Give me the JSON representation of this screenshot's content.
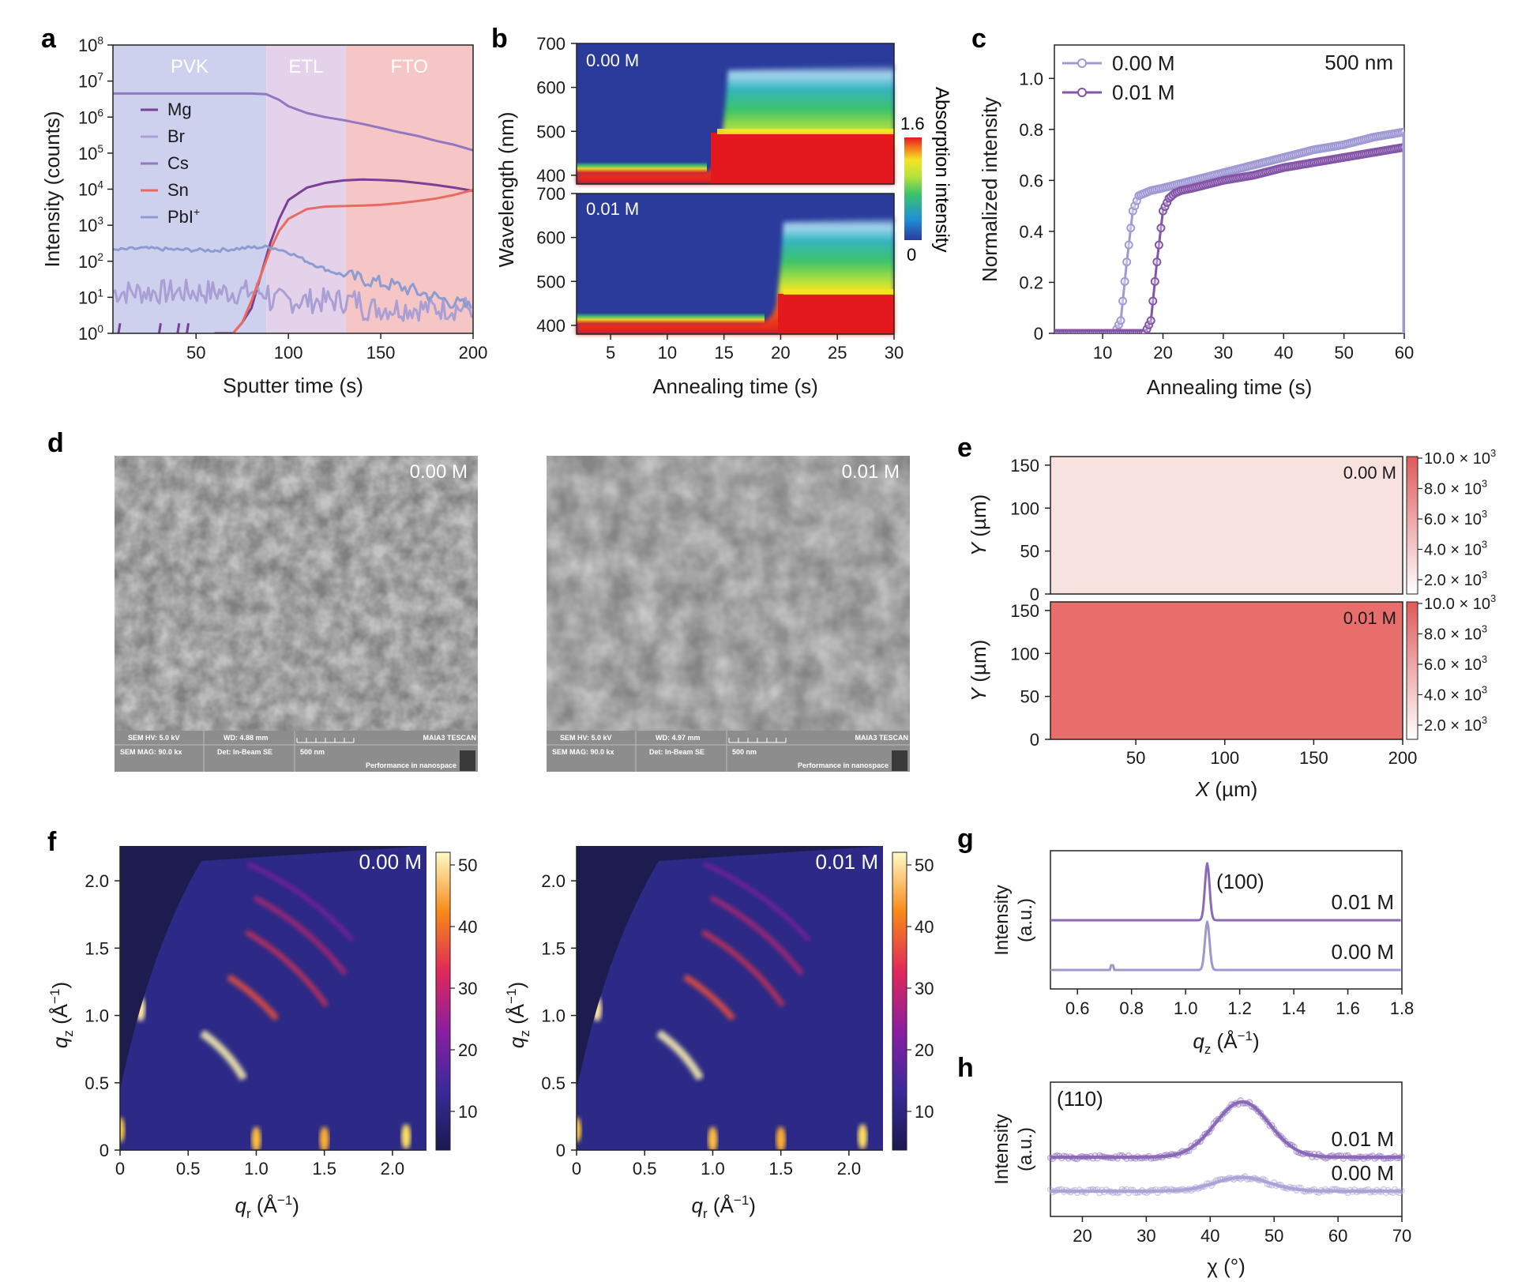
{
  "panels": {
    "a": "a",
    "b": "b",
    "c": "c",
    "d": "d",
    "e": "e",
    "f": "f",
    "g": "g",
    "h": "h"
  },
  "colors": {
    "pvk_bg": "#cdd1ee",
    "etl_bg": "#e3d2ea",
    "fto_bg": "#f6c6c6",
    "dark_purple": "#7b3f96",
    "mid_purple": "#9278c0",
    "light_purple": "#a99fd4",
    "red": "#ea6a5f",
    "c_light": "#a09ad4",
    "c_dark": "#8454a8",
    "g_purple": "#8a6ab8",
    "g_light": "#9e98cc"
  },
  "chart_data": [
    {
      "panel": "a",
      "type": "line",
      "xlabel": "Sputter time (s)",
      "ylabel": "Intensity (counts)",
      "xlim": [
        5,
        200
      ],
      "yscale": "log",
      "ylim": [
        1,
        100000000
      ],
      "xticks": [
        "50",
        "100",
        "150",
        "200"
      ],
      "yticks": [
        {
          "base": "10",
          "exp": "8"
        },
        {
          "base": "10",
          "exp": "7"
        },
        {
          "base": "10",
          "exp": "6"
        },
        {
          "base": "10",
          "exp": "5"
        },
        {
          "base": "10",
          "exp": "4"
        },
        {
          "base": "10",
          "exp": "3"
        },
        {
          "base": "10",
          "exp": "2"
        },
        {
          "base": "10",
          "exp": "1"
        },
        {
          "base": "10",
          "exp": "0"
        }
      ],
      "regions": [
        {
          "label": "PVK",
          "x": [
            5,
            88
          ]
        },
        {
          "label": "ETL",
          "x": [
            88,
            131
          ]
        },
        {
          "label": "FTO",
          "x": [
            131,
            200
          ]
        }
      ],
      "legend_position": "left",
      "series": [
        {
          "name": "Mg",
          "color": "#7b3f96",
          "x": [
            60,
            70,
            75,
            80,
            85,
            90,
            95,
            100,
            110,
            120,
            130,
            140,
            150,
            160,
            170,
            180,
            190,
            200
          ],
          "y": [
            1,
            1,
            2,
            5,
            40,
            300,
            1500,
            5000,
            11000,
            15000,
            17500,
            18500,
            18000,
            17000,
            15000,
            13000,
            11000,
            9000
          ]
        },
        {
          "name": "Br",
          "color": "#a99fd4",
          "x": [
            5,
            20,
            40,
            60,
            80,
            88,
            100,
            110,
            120,
            130,
            140,
            150,
            160,
            170,
            180,
            190,
            200
          ],
          "y": [
            15,
            12,
            14,
            11,
            13,
            10,
            8,
            9,
            7,
            8,
            6,
            7,
            5,
            6,
            4,
            5,
            4
          ]
        },
        {
          "name": "Cs",
          "color": "#9278c0",
          "x": [
            5,
            20,
            40,
            60,
            80,
            88,
            95,
            100,
            110,
            120,
            130,
            140,
            150,
            160,
            170,
            180,
            190,
            200
          ],
          "y": [
            4500000,
            4500000,
            4500000,
            4500000,
            4500000,
            4300000,
            3000000,
            2000000,
            1300000,
            1000000,
            820000,
            650000,
            500000,
            380000,
            300000,
            220000,
            170000,
            120000
          ]
        },
        {
          "name": "Sn",
          "color": "#ea6a5f",
          "x": [
            70,
            75,
            80,
            85,
            90,
            95,
            100,
            110,
            120,
            130,
            140,
            150,
            160,
            170,
            180,
            190,
            200
          ],
          "y": [
            1,
            2,
            8,
            40,
            200,
            700,
            1500,
            2800,
            3300,
            3400,
            3500,
            3700,
            4100,
            4700,
            5500,
            7000,
            9500
          ]
        },
        {
          "name": "PbI",
          "name_sup": "+",
          "color": "#8c9bd0",
          "x": [
            5,
            20,
            40,
            60,
            80,
            90,
            100,
            110,
            120,
            130,
            140,
            150,
            160,
            170,
            180,
            190,
            200
          ],
          "y": [
            200,
            230,
            210,
            200,
            240,
            250,
            180,
            100,
            60,
            40,
            32,
            25,
            20,
            14,
            10,
            7,
            5
          ]
        }
      ]
    },
    {
      "panel": "b",
      "type": "heatmap",
      "xlabel": "Annealing time (s)",
      "ylabel": "Wavelength (nm)",
      "xlim": [
        2,
        30
      ],
      "ylim": [
        380,
        700
      ],
      "xticks": [
        "5",
        "10",
        "15",
        "20",
        "25",
        "30"
      ],
      "yticks": [
        "400",
        "500",
        "600",
        "700"
      ],
      "colorbar": {
        "label": "Absorption intensity",
        "min_label": "0",
        "max_label": "1.6",
        "range": [
          0,
          1.6
        ]
      },
      "subplots": [
        {
          "label": "0.00 M",
          "edge_time": 14.5,
          "absorption_edge_after_nm": [
            630,
            650
          ],
          "absorption_edge_before_nm": 420
        },
        {
          "label": "0.01 M",
          "edge_time": 19.5,
          "absorption_edge_after_nm": [
            630,
            650
          ],
          "absorption_edge_before_nm": 420
        }
      ]
    },
    {
      "panel": "c",
      "type": "line",
      "xlabel": "Annealing time (s)",
      "ylabel": "Normalized intensity",
      "annotation": "500 nm",
      "xlim": [
        2,
        60
      ],
      "ylim": [
        0,
        1.1
      ],
      "xticks": [
        "10",
        "20",
        "30",
        "40",
        "50",
        "60"
      ],
      "yticks": [
        "0",
        "0.2",
        "0.4",
        "0.6",
        "0.8",
        "1.0"
      ],
      "legend_position": "top-left",
      "series": [
        {
          "name": "0.00 M",
          "color": "#a09ad4",
          "x": [
            2,
            12,
            13,
            14,
            15,
            16,
            17,
            18,
            20,
            25,
            30,
            35,
            40,
            45,
            50,
            55,
            60
          ],
          "y": [
            0,
            0,
            0.05,
            0.28,
            0.48,
            0.54,
            0.55,
            0.56,
            0.57,
            0.6,
            0.63,
            0.66,
            0.69,
            0.72,
            0.74,
            0.77,
            0.79
          ]
        },
        {
          "name": "0.01 M",
          "color": "#8454a8",
          "x": [
            2,
            17,
            18,
            19,
            20,
            21,
            22,
            23,
            25,
            30,
            35,
            40,
            45,
            50,
            55,
            60
          ],
          "y": [
            0,
            0,
            0.05,
            0.28,
            0.48,
            0.53,
            0.55,
            0.56,
            0.57,
            0.6,
            0.62,
            0.65,
            0.67,
            0.69,
            0.71,
            0.73
          ]
        }
      ]
    },
    {
      "panel": "e",
      "type": "heatmap",
      "xlabel_prefix": "X",
      "xlabel_unit": " (µm)",
      "ylabel_prefix": "Y",
      "ylabel_unit": " (µm)",
      "xlim": [
        2,
        200
      ],
      "ylim": [
        0,
        160
      ],
      "xticks": [
        "50",
        "100",
        "150",
        "200"
      ],
      "yticks": [
        "0",
        "50",
        "100",
        "150"
      ],
      "colorbar_ticks": [
        {
          "m": "10.0",
          "e": "3"
        },
        {
          "m": "8.0",
          "e": "3"
        },
        {
          "m": "6.0",
          "e": "3"
        },
        {
          "m": "4.0",
          "e": "3"
        },
        {
          "m": "2.0",
          "e": "3"
        }
      ],
      "subplots": [
        {
          "label": "0.00 M",
          "level": 0.08
        },
        {
          "label": "0.01 M",
          "level": 0.72
        }
      ]
    },
    {
      "panel": "f",
      "type": "heatmap",
      "xlabel_base": "q",
      "xlabel_sub": "r",
      "ylabel_base": "q",
      "ylabel_sub": "z",
      "unit_text": "(Å",
      "unit_exp": "−1",
      "xlim": [
        0,
        2.25
      ],
      "ylim": [
        0,
        2.2
      ],
      "xticks": [
        "0",
        "0.5",
        "1.0",
        "1.5",
        "2.0"
      ],
      "yticks": [
        "0",
        "0.5",
        "1.0",
        "1.5",
        "2.0"
      ],
      "colorbar_ticks": [
        "10",
        "20",
        "30",
        "40",
        "50"
      ],
      "subplots": [
        {
          "label": "0.00 M"
        },
        {
          "label": "0.01 M"
        }
      ]
    },
    {
      "panel": "g",
      "type": "line",
      "xlabel_base": "q",
      "xlabel_sub": "z",
      "xlabel_unit": "(Å",
      "xlabel_exp": "−1",
      "ylabel": "Intensity (a.u.)",
      "xlim": [
        0.5,
        1.8
      ],
      "xticks": [
        "0.6",
        "0.8",
        "1.0",
        "1.2",
        "1.4",
        "1.6",
        "1.8"
      ],
      "annotation": "(100)",
      "series": [
        {
          "name": "0.01 M",
          "color": "#8a6ab8",
          "peak_q": 1.08,
          "peak_height": 1.0,
          "offset": 1.0
        },
        {
          "name": "0.00 M",
          "color": "#9e98cc",
          "peak_q": 1.08,
          "peak_height": 0.85,
          "offset": 0.0
        }
      ]
    },
    {
      "panel": "h",
      "type": "line",
      "xlabel": "χ (°)",
      "ylabel": "Intensity (a.u.)",
      "xlim": [
        15,
        70
      ],
      "xticks": [
        "20",
        "30",
        "40",
        "50",
        "60",
        "70"
      ],
      "annotation": "(110)",
      "series": [
        {
          "name": "0.01 M",
          "color": "#8a6ab8",
          "peak_chi": 45,
          "peak_height": 1.0,
          "offset": 1.0
        },
        {
          "name": "0.00 M",
          "color": "#a9a3d6",
          "peak_chi": 45,
          "peak_height": 0.25,
          "offset": 0.0
        }
      ]
    }
  ],
  "sem": [
    {
      "label": "0.00 M",
      "hv": "SEM HV: 5.0 kV",
      "wd": "WD: 4.88 mm",
      "mag": "SEM MAG: 90.0 kx",
      "det": "Det: In-Beam SE",
      "scale": "500 nm",
      "brand": "MAIA3 TESCAN",
      "tagline": "Performance in nanospace"
    },
    {
      "label": "0.01 M",
      "hv": "SEM HV: 5.0 kV",
      "wd": "WD: 4.97 mm",
      "mag": "SEM MAG: 90.0 kx",
      "det": "Det: In-Beam SE",
      "scale": "500 nm",
      "brand": "MAIA3 TESCAN",
      "tagline": "Performance in nanospace"
    }
  ]
}
